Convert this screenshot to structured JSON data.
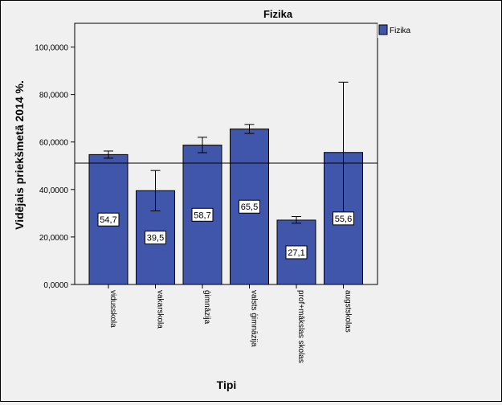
{
  "chart_data": {
    "type": "bar",
    "title": "Fizika",
    "xlabel": "Tipi",
    "ylabel": "Vidējais priekšmetā 2014 %.",
    "categories": [
      "vidusskola",
      "vakarskola",
      "ģimnāzija",
      "valsts ģimnāzija",
      "prof+mākslas skolas",
      "augstskolas"
    ],
    "series": [
      {
        "name": "Fizika",
        "values": [
          54.7,
          39.5,
          58.7,
          65.5,
          27.1,
          55.6
        ],
        "value_labels": [
          "54,7",
          "39,5",
          "58,7",
          "65,5",
          "27,1",
          "55,6"
        ],
        "error_low": [
          53.2,
          31.0,
          55.5,
          63.6,
          25.8,
          26.0
        ],
        "error_high": [
          56.2,
          48.0,
          62.0,
          67.4,
          28.6,
          85.2
        ],
        "color": "#3f56ab"
      }
    ],
    "reference_line": 51.1,
    "ylim": [
      0,
      110
    ],
    "yticks": [
      0,
      20,
      40,
      60,
      80,
      100
    ],
    "ytick_labels": [
      "0,0000",
      "20,0000",
      "40,0000",
      "60,0000",
      "80,0000",
      "100,0000"
    ],
    "legend_position": "top-right",
    "grid": false
  }
}
